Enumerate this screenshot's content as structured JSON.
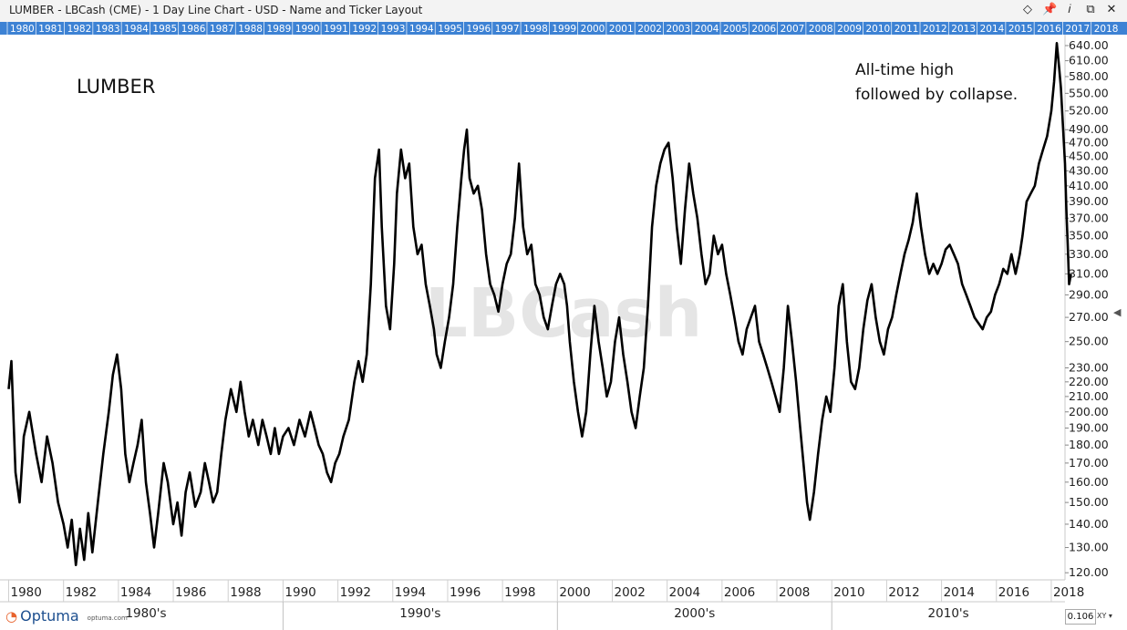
{
  "window": {
    "title": "LUMBER - LBCash (CME) - 1 Day Line Chart - USD - Name and Ticker Layout",
    "icons": [
      "diamond-icon",
      "pin-icon",
      "info-icon",
      "restore-icon",
      "close-icon"
    ]
  },
  "chart_data": {
    "type": "line",
    "symbol_label": "LUMBER",
    "watermark": "LBCash",
    "annotation": [
      "All-time high",
      "followed by collapse."
    ],
    "y_scale": "log",
    "ylim": [
      118,
      655
    ],
    "xlim": [
      1979.95,
      2018.5
    ],
    "y_ticks": [
      640,
      610,
      580,
      550,
      520,
      490,
      470,
      450,
      430,
      410,
      390,
      370,
      350,
      330,
      310,
      290,
      270,
      250,
      230,
      220,
      210,
      200,
      190,
      180,
      170,
      160,
      150,
      140,
      130,
      120
    ],
    "y_tick_labels": [
      "640.00",
      "610.00",
      "580.00",
      "550.00",
      "520.00",
      "490.00",
      "470.00",
      "450.00",
      "430.00",
      "410.00",
      "390.00",
      "370.00",
      "350.00",
      "330.00",
      "310.00",
      "290.00",
      "270.00",
      "250.00",
      "230.00",
      "220.00",
      "210.00",
      "200.00",
      "190.00",
      "180.00",
      "170.00",
      "160.00",
      "150.00",
      "140.00",
      "130.00",
      "120.00"
    ],
    "x_tick_labels": [
      "1980",
      "1982",
      "1984",
      "1986",
      "1988",
      "1990",
      "1992",
      "1994",
      "1996",
      "1998",
      "2000",
      "2002",
      "2004",
      "2006",
      "2008",
      "2010",
      "2012",
      "2014",
      "2016",
      "2018"
    ],
    "decade_labels": [
      {
        "label": "1980's",
        "from": 1979.95,
        "to": 1990
      },
      {
        "label": "1990's",
        "from": 1990,
        "to": 2000
      },
      {
        "label": "2000's",
        "from": 2000,
        "to": 2010
      },
      {
        "label": "2010's",
        "from": 2010,
        "to": 2018.5
      }
    ],
    "top_band_years": [
      "1980",
      "1981",
      "1982",
      "1983",
      "1984",
      "1985",
      "1986",
      "1987",
      "1988",
      "1989",
      "1990",
      "1991",
      "1992",
      "1993",
      "1994",
      "1995",
      "1996",
      "1997",
      "1998",
      "1999",
      "2000",
      "2001",
      "2002",
      "2003",
      "2004",
      "2005",
      "2006",
      "2007",
      "2008",
      "2009",
      "2010",
      "2011",
      "2012",
      "2013",
      "2014",
      "2015",
      "2016",
      "2017",
      "2018"
    ],
    "colors": {
      "line": "#000000",
      "top_band": "#3d82d4",
      "watermark": "#e5e5e5",
      "axis": "#c8c8c8"
    },
    "series": [
      {
        "points": [
          [
            1980.0,
            215
          ],
          [
            1980.1,
            235
          ],
          [
            1980.25,
            165
          ],
          [
            1980.4,
            150
          ],
          [
            1980.55,
            185
          ],
          [
            1980.75,
            200
          ],
          [
            1981.0,
            175
          ],
          [
            1981.2,
            160
          ],
          [
            1981.4,
            185
          ],
          [
            1981.6,
            170
          ],
          [
            1981.8,
            150
          ],
          [
            1982.0,
            140
          ],
          [
            1982.15,
            130
          ],
          [
            1982.3,
            142
          ],
          [
            1982.45,
            123
          ],
          [
            1982.6,
            138
          ],
          [
            1982.75,
            125
          ],
          [
            1982.9,
            145
          ],
          [
            1983.05,
            128
          ],
          [
            1983.25,
            150
          ],
          [
            1983.45,
            175
          ],
          [
            1983.65,
            200
          ],
          [
            1983.8,
            225
          ],
          [
            1983.95,
            240
          ],
          [
            1984.1,
            215
          ],
          [
            1984.25,
            175
          ],
          [
            1984.4,
            160
          ],
          [
            1984.55,
            170
          ],
          [
            1984.7,
            180
          ],
          [
            1984.85,
            195
          ],
          [
            1985.0,
            160
          ],
          [
            1985.15,
            145
          ],
          [
            1985.3,
            130
          ],
          [
            1985.45,
            145
          ],
          [
            1985.65,
            170
          ],
          [
            1985.8,
            160
          ],
          [
            1986.0,
            140
          ],
          [
            1986.15,
            150
          ],
          [
            1986.3,
            135
          ],
          [
            1986.45,
            155
          ],
          [
            1986.6,
            165
          ],
          [
            1986.8,
            148
          ],
          [
            1987.0,
            155
          ],
          [
            1987.15,
            170
          ],
          [
            1987.3,
            160
          ],
          [
            1987.45,
            150
          ],
          [
            1987.6,
            155
          ],
          [
            1987.75,
            175
          ],
          [
            1987.9,
            195
          ],
          [
            1988.1,
            215
          ],
          [
            1988.3,
            200
          ],
          [
            1988.45,
            220
          ],
          [
            1988.6,
            200
          ],
          [
            1988.75,
            185
          ],
          [
            1988.9,
            195
          ],
          [
            1989.1,
            180
          ],
          [
            1989.25,
            195
          ],
          [
            1989.4,
            185
          ],
          [
            1989.55,
            175
          ],
          [
            1989.7,
            190
          ],
          [
            1989.85,
            175
          ],
          [
            1990.0,
            185
          ],
          [
            1990.2,
            190
          ],
          [
            1990.4,
            180
          ],
          [
            1990.6,
            195
          ],
          [
            1990.8,
            185
          ],
          [
            1991.0,
            200
          ],
          [
            1991.15,
            190
          ],
          [
            1991.3,
            180
          ],
          [
            1991.45,
            175
          ],
          [
            1991.6,
            165
          ],
          [
            1991.75,
            160
          ],
          [
            1991.9,
            170
          ],
          [
            1992.05,
            175
          ],
          [
            1992.2,
            185
          ],
          [
            1992.4,
            195
          ],
          [
            1992.6,
            220
          ],
          [
            1992.75,
            235
          ],
          [
            1992.9,
            220
          ],
          [
            1993.05,
            240
          ],
          [
            1993.2,
            300
          ],
          [
            1993.35,
            420
          ],
          [
            1993.5,
            460
          ],
          [
            1993.6,
            360
          ],
          [
            1993.75,
            280
          ],
          [
            1993.9,
            260
          ],
          [
            1994.05,
            320
          ],
          [
            1994.15,
            400
          ],
          [
            1994.3,
            460
          ],
          [
            1994.45,
            420
          ],
          [
            1994.6,
            440
          ],
          [
            1994.75,
            360
          ],
          [
            1994.9,
            330
          ],
          [
            1995.05,
            340
          ],
          [
            1995.2,
            300
          ],
          [
            1995.35,
            280
          ],
          [
            1995.5,
            260
          ],
          [
            1995.6,
            240
          ],
          [
            1995.75,
            230
          ],
          [
            1995.9,
            250
          ],
          [
            1996.05,
            270
          ],
          [
            1996.2,
            300
          ],
          [
            1996.35,
            360
          ],
          [
            1996.5,
            420
          ],
          [
            1996.6,
            460
          ],
          [
            1996.7,
            490
          ],
          [
            1996.8,
            420
          ],
          [
            1996.95,
            400
          ],
          [
            1997.1,
            410
          ],
          [
            1997.25,
            380
          ],
          [
            1997.4,
            330
          ],
          [
            1997.55,
            300
          ],
          [
            1997.7,
            290
          ],
          [
            1997.85,
            275
          ],
          [
            1998.0,
            300
          ],
          [
            1998.15,
            320
          ],
          [
            1998.3,
            330
          ],
          [
            1998.45,
            370
          ],
          [
            1998.6,
            440
          ],
          [
            1998.75,
            360
          ],
          [
            1998.9,
            330
          ],
          [
            1999.05,
            340
          ],
          [
            1999.2,
            300
          ],
          [
            1999.35,
            290
          ],
          [
            1999.5,
            270
          ],
          [
            1999.65,
            260
          ],
          [
            1999.8,
            280
          ],
          [
            1999.95,
            300
          ],
          [
            2000.1,
            310
          ],
          [
            2000.25,
            300
          ],
          [
            2000.35,
            280
          ],
          [
            2000.45,
            250
          ],
          [
            2000.6,
            220
          ],
          [
            2000.75,
            200
          ],
          [
            2000.9,
            185
          ],
          [
            2001.05,
            200
          ],
          [
            2001.2,
            240
          ],
          [
            2001.35,
            280
          ],
          [
            2001.5,
            250
          ],
          [
            2001.65,
            230
          ],
          [
            2001.8,
            210
          ],
          [
            2001.95,
            220
          ],
          [
            2002.1,
            250
          ],
          [
            2002.25,
            270
          ],
          [
            2002.4,
            240
          ],
          [
            2002.55,
            220
          ],
          [
            2002.7,
            200
          ],
          [
            2002.85,
            190
          ],
          [
            2003.0,
            210
          ],
          [
            2003.15,
            230
          ],
          [
            2003.3,
            280
          ],
          [
            2003.45,
            360
          ],
          [
            2003.6,
            410
          ],
          [
            2003.75,
            440
          ],
          [
            2003.9,
            460
          ],
          [
            2004.05,
            470
          ],
          [
            2004.2,
            420
          ],
          [
            2004.35,
            360
          ],
          [
            2004.5,
            320
          ],
          [
            2004.65,
            380
          ],
          [
            2004.8,
            440
          ],
          [
            2004.95,
            400
          ],
          [
            2005.1,
            370
          ],
          [
            2005.25,
            330
          ],
          [
            2005.4,
            300
          ],
          [
            2005.55,
            310
          ],
          [
            2005.7,
            350
          ],
          [
            2005.85,
            330
          ],
          [
            2006.0,
            340
          ],
          [
            2006.15,
            310
          ],
          [
            2006.3,
            290
          ],
          [
            2006.45,
            270
          ],
          [
            2006.6,
            250
          ],
          [
            2006.75,
            240
          ],
          [
            2006.9,
            260
          ],
          [
            2007.05,
            270
          ],
          [
            2007.2,
            280
          ],
          [
            2007.35,
            250
          ],
          [
            2007.5,
            240
          ],
          [
            2007.65,
            230
          ],
          [
            2007.8,
            220
          ],
          [
            2007.95,
            210
          ],
          [
            2008.1,
            200
          ],
          [
            2008.25,
            230
          ],
          [
            2008.4,
            280
          ],
          [
            2008.55,
            250
          ],
          [
            2008.7,
            220
          ],
          [
            2008.85,
            190
          ],
          [
            2009.0,
            165
          ],
          [
            2009.1,
            150
          ],
          [
            2009.2,
            142
          ],
          [
            2009.35,
            155
          ],
          [
            2009.5,
            175
          ],
          [
            2009.65,
            195
          ],
          [
            2009.8,
            210
          ],
          [
            2009.95,
            200
          ],
          [
            2010.1,
            230
          ],
          [
            2010.25,
            280
          ],
          [
            2010.4,
            300
          ],
          [
            2010.55,
            250
          ],
          [
            2010.7,
            220
          ],
          [
            2010.85,
            215
          ],
          [
            2011.0,
            230
          ],
          [
            2011.15,
            260
          ],
          [
            2011.3,
            285
          ],
          [
            2011.45,
            300
          ],
          [
            2011.6,
            270
          ],
          [
            2011.75,
            250
          ],
          [
            2011.9,
            240
          ],
          [
            2012.05,
            260
          ],
          [
            2012.2,
            270
          ],
          [
            2012.35,
            290
          ],
          [
            2012.5,
            310
          ],
          [
            2012.65,
            330
          ],
          [
            2012.8,
            345
          ],
          [
            2012.95,
            365
          ],
          [
            2013.1,
            400
          ],
          [
            2013.25,
            360
          ],
          [
            2013.4,
            330
          ],
          [
            2013.55,
            310
          ],
          [
            2013.7,
            320
          ],
          [
            2013.85,
            310
          ],
          [
            2014.0,
            320
          ],
          [
            2014.15,
            335
          ],
          [
            2014.3,
            340
          ],
          [
            2014.45,
            330
          ],
          [
            2014.6,
            320
          ],
          [
            2014.75,
            300
          ],
          [
            2014.9,
            290
          ],
          [
            2015.05,
            280
          ],
          [
            2015.2,
            270
          ],
          [
            2015.35,
            265
          ],
          [
            2015.5,
            260
          ],
          [
            2015.65,
            270
          ],
          [
            2015.8,
            275
          ],
          [
            2015.95,
            290
          ],
          [
            2016.1,
            300
          ],
          [
            2016.25,
            315
          ],
          [
            2016.4,
            310
          ],
          [
            2016.55,
            330
          ],
          [
            2016.7,
            310
          ],
          [
            2016.85,
            330
          ],
          [
            2016.95,
            350
          ],
          [
            2017.1,
            390
          ],
          [
            2017.25,
            400
          ],
          [
            2017.4,
            410
          ],
          [
            2017.55,
            440
          ],
          [
            2017.7,
            460
          ],
          [
            2017.85,
            480
          ],
          [
            2018.0,
            520
          ],
          [
            2018.1,
            570
          ],
          [
            2018.2,
            645
          ],
          [
            2018.28,
            600
          ],
          [
            2018.35,
            560
          ],
          [
            2018.42,
            500
          ],
          [
            2018.5,
            440
          ],
          [
            2018.55,
            380
          ],
          [
            2018.6,
            340
          ],
          [
            2018.65,
            300
          ],
          [
            2018.72,
            310
          ]
        ]
      }
    ]
  }
}
